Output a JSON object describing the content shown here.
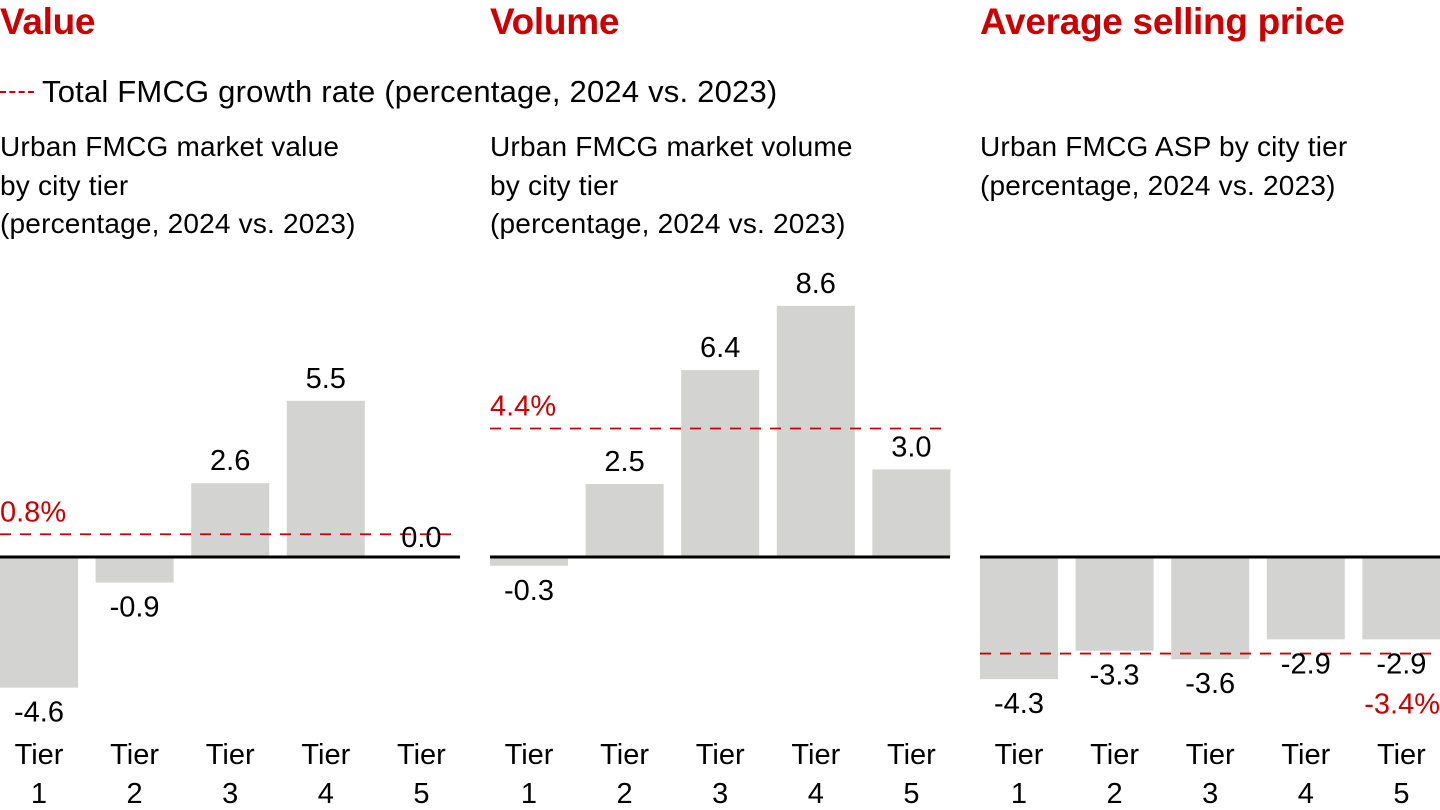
{
  "legend": {
    "swatch": "dashed-red-line",
    "label": "Total FMCG growth rate (percentage, 2024 vs. 2023)"
  },
  "colors": {
    "accent": "#cc0000",
    "bar": "#d3d3d2",
    "axis": "#000000",
    "text": "#000000"
  },
  "chart_data": [
    {
      "type": "bar",
      "title": "Value",
      "subtitle": "Urban FMCG market value\nby city tier\n(percentage, 2024 vs. 2023)",
      "categories": [
        "Tier 1",
        "Tier 2",
        "Tier 3",
        "Tier 4",
        "Tier 5"
      ],
      "tick_labels": [
        [
          "Tier",
          "1"
        ],
        [
          "Tier",
          "2"
        ],
        [
          "Tier",
          "3"
        ],
        [
          "Tier",
          "4"
        ],
        [
          "Tier",
          "5"
        ]
      ],
      "values": [
        -4.6,
        -0.9,
        2.6,
        5.5,
        0.0
      ],
      "value_labels": [
        "-4.6",
        "-0.9",
        "2.6",
        "5.5",
        "0.0"
      ],
      "reference": {
        "value": 0.8,
        "label": "0.8%",
        "style": "dashed"
      },
      "xlabel": "",
      "ylabel": "",
      "grid": false
    },
    {
      "type": "bar",
      "title": "Volume",
      "subtitle": "Urban FMCG market volume\nby city tier\n(percentage, 2024 vs. 2023)",
      "categories": [
        "Tier 1",
        "Tier 2",
        "Tier 3",
        "Tier 4",
        "Tier 5"
      ],
      "tick_labels": [
        [
          "Tier",
          "1"
        ],
        [
          "Tier",
          "2"
        ],
        [
          "Tier",
          "3"
        ],
        [
          "Tier",
          "4"
        ],
        [
          "Tier",
          "5"
        ]
      ],
      "values": [
        -0.3,
        2.5,
        6.4,
        8.6,
        3.0
      ],
      "value_labels": [
        "-0.3",
        "2.5",
        "6.4",
        "8.6",
        "3.0"
      ],
      "reference": {
        "value": 4.4,
        "label": "4.4%",
        "style": "dashed"
      },
      "xlabel": "",
      "ylabel": "",
      "grid": false
    },
    {
      "type": "bar",
      "title": "Average selling price",
      "subtitle": "Urban FMCG ASP by city tier\n(percentage, 2024 vs. 2023)",
      "categories": [
        "Tier 1",
        "Tier 2",
        "Tier 3",
        "Tier 4",
        "Tier 5"
      ],
      "tick_labels": [
        [
          "Tier",
          "1"
        ],
        [
          "Tier",
          "2"
        ],
        [
          "Tier",
          "3"
        ],
        [
          "Tier",
          "4"
        ],
        [
          "Tier",
          "5"
        ]
      ],
      "values": [
        -4.3,
        -3.3,
        -3.6,
        -2.9,
        -2.9
      ],
      "value_labels": [
        "-4.3",
        "-3.3",
        "-3.6",
        "-2.9",
        "-2.9"
      ],
      "reference": {
        "value": -3.4,
        "label": "-3.4%",
        "style": "dashed"
      },
      "xlabel": "",
      "ylabel": "",
      "grid": false
    }
  ]
}
